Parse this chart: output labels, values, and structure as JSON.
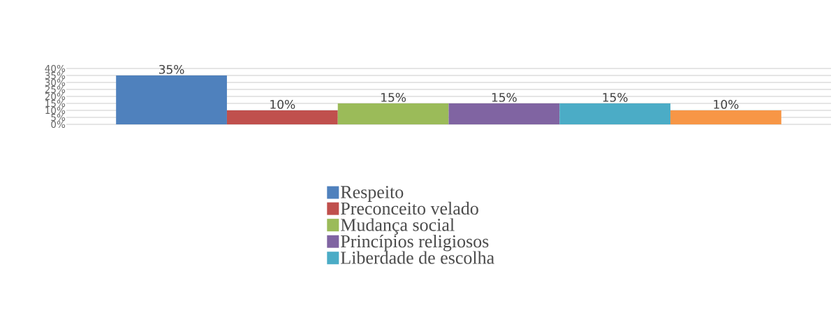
{
  "chart_data": {
    "type": "bar",
    "categories": [
      null
    ],
    "series": [
      {
        "name": "Respeito",
        "color": "#4f81bd",
        "values": [
          35
        ],
        "value_labels": [
          "35%"
        ]
      },
      {
        "name": "Preconceito velado",
        "color": "#c0504d",
        "values": [
          10
        ],
        "value_labels": [
          "10%"
        ]
      },
      {
        "name": "Mudança social",
        "color": "#9bbb59",
        "values": [
          15
        ],
        "value_labels": [
          "15%"
        ]
      },
      {
        "name": "Princípios religiosos",
        "color": "#8064a2",
        "values": [
          15
        ],
        "value_labels": [
          "15%"
        ]
      },
      {
        "name": "Liberdade de escolha",
        "color": "#4bacc6",
        "values": [
          15
        ],
        "value_labels": [
          "15%"
        ]
      },
      {
        "color": "#f79646",
        "values": [
          10
        ],
        "value_labels": [
          "10%"
        ]
      }
    ],
    "ylim": [
      0,
      40
    ],
    "yticks": [
      {
        "value": 0,
        "label": "0%"
      },
      {
        "value": 5,
        "label": "5%"
      },
      {
        "value": 10,
        "label": "10%"
      },
      {
        "value": 15,
        "label": "15%"
      },
      {
        "value": 20,
        "label": "20%"
      },
      {
        "value": 25,
        "label": "25%"
      },
      {
        "value": 30,
        "label": "30%"
      },
      {
        "value": 35,
        "label": "35%"
      },
      {
        "value": 40,
        "label": "40%"
      }
    ],
    "grid": "y",
    "legend": "bottom"
  }
}
